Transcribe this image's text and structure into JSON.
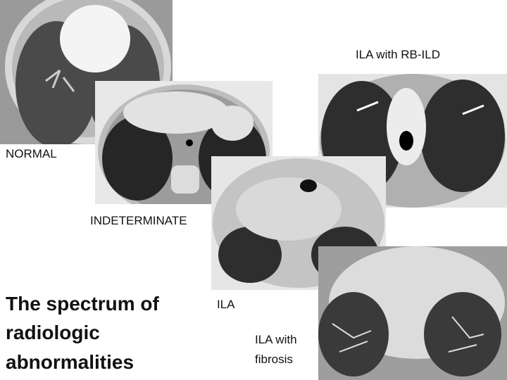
{
  "slide": {
    "title_lines": [
      "The spectrum of",
      "radiologic",
      "abnormalities"
    ],
    "labels": {
      "normal": "NORMAL",
      "indeterminate": "INDETERMINATE",
      "ila": "ILA",
      "ila_rb_ild": "ILA with RB-ILD",
      "ila_fibrosis_lines": [
        "ILA with",
        "fibrosis"
      ]
    }
  }
}
